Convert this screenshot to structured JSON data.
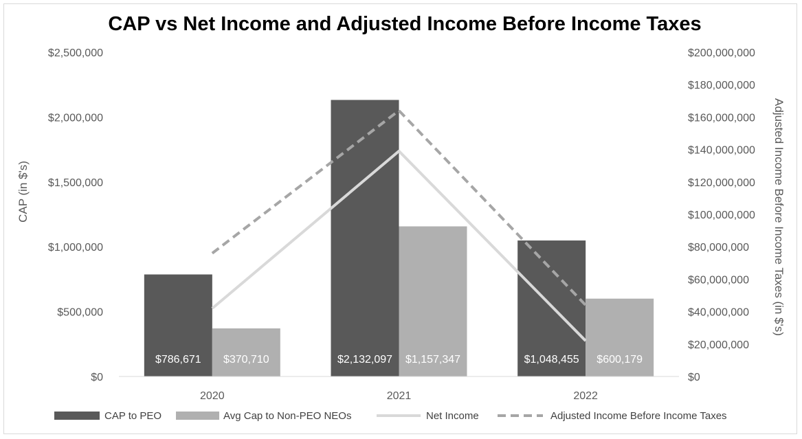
{
  "chart_data": {
    "type": "bar",
    "title": "CAP vs Net Income and Adjusted Income Before Income Taxes",
    "categories": [
      "2020",
      "2021",
      "2022"
    ],
    "ylabel": "CAP (in $'s)",
    "y2label": "Adjusted Income Before Income Taxes (in $'s)",
    "ylim": [
      0,
      2500000
    ],
    "y2lim": [
      0,
      200000000
    ],
    "y_ticks": [
      "$0",
      "$500,000",
      "$1,000,000",
      "$1,500,000",
      "$2,000,000",
      "$2,500,000"
    ],
    "y2_ticks": [
      "$0",
      "$20,000,000",
      "$40,000,000",
      "$60,000,000",
      "$80,000,000",
      "$100,000,000",
      "$120,000,000",
      "$140,000,000",
      "$160,000,000",
      "$180,000,000",
      "$200,000,000"
    ],
    "grid": false,
    "legend_position": "bottom",
    "series": [
      {
        "name": "CAP to PEO",
        "type": "bar",
        "axis": "left",
        "color": "#595959",
        "values": [
          786671,
          2132097,
          1048455
        ],
        "labels": [
          "$786,671",
          "$2,132,097",
          "$1,048,455"
        ]
      },
      {
        "name": "Avg Cap to Non-PEO NEOs",
        "type": "bar",
        "axis": "left",
        "color": "#b0b0b0",
        "values": [
          370710,
          1157347,
          600179
        ],
        "labels": [
          "$370,710",
          "$1,157,347",
          "$600,179"
        ]
      },
      {
        "name": "Net Income",
        "type": "line",
        "axis": "right",
        "color": "#d9d9d9",
        "dashed": false,
        "values": [
          42000000,
          139000000,
          22000000
        ]
      },
      {
        "name": "Adjusted Income Before Income Taxes",
        "type": "line",
        "axis": "right",
        "color": "#a6a6a6",
        "dashed": true,
        "values": [
          76000000,
          164000000,
          44000000
        ]
      }
    ]
  }
}
